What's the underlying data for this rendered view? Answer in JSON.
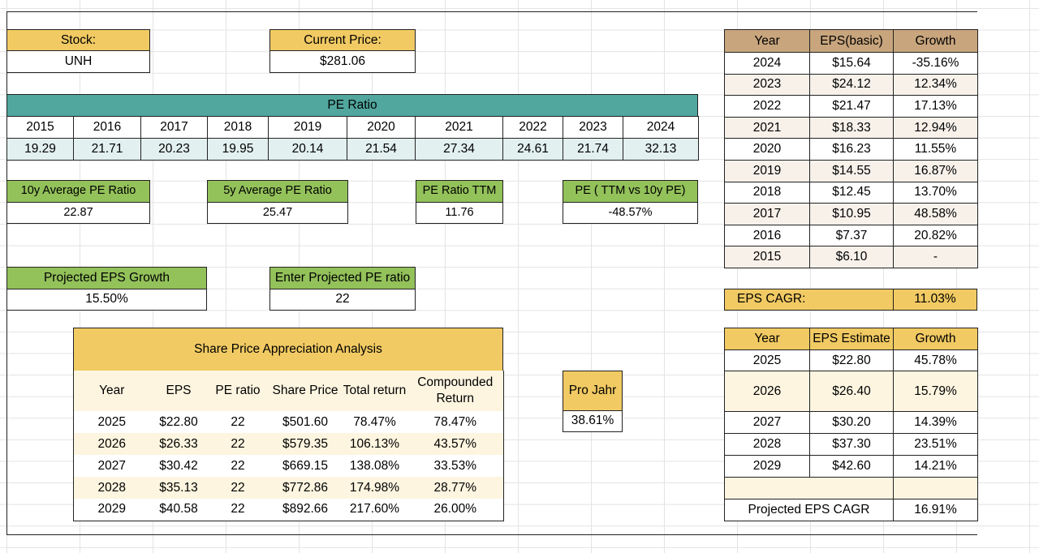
{
  "stock": {
    "label": "Stock:",
    "value": "UNH"
  },
  "current_price": {
    "label": "Current Price:",
    "value": "$281.06"
  },
  "pe_ratio": {
    "title": "PE Ratio",
    "years": [
      "2015",
      "2016",
      "2017",
      "2018",
      "2019",
      "2020",
      "2021",
      "2022",
      "2023",
      "2024"
    ],
    "values": [
      "19.29",
      "21.71",
      "20.23",
      "19.95",
      "20.14",
      "21.54",
      "27.34",
      "24.61",
      "21.74",
      "32.13"
    ]
  },
  "metrics": {
    "avg10": {
      "label": "10y Average PE Ratio",
      "value": "22.87"
    },
    "avg5": {
      "label": "5y Average PE Ratio",
      "value": "25.47"
    },
    "ttm": {
      "label": "PE Ratio TTM",
      "value": "11.76"
    },
    "ttm_vs_10y": {
      "label": "PE ( TTM vs 10y PE)",
      "value": "-48.57%"
    }
  },
  "projected_growth": {
    "label": "Projected EPS Growth",
    "value": "15.50%"
  },
  "projected_pe": {
    "label": "Enter Projected PE ratio",
    "value": "22"
  },
  "analysis": {
    "title": "Share Price Appreciation Analysis",
    "headers": [
      "Year",
      "EPS",
      "PE ratio",
      "Share Price",
      "Total return",
      "Compounded Return"
    ],
    "rows": [
      [
        "2025",
        "$22.80",
        "22",
        "$501.60",
        "78.47%",
        "78.47%"
      ],
      [
        "2026",
        "$26.33",
        "22",
        "$579.35",
        "106.13%",
        "43.57%"
      ],
      [
        "2027",
        "$30.42",
        "22",
        "$669.15",
        "138.08%",
        "33.53%"
      ],
      [
        "2028",
        "$35.13",
        "22",
        "$772.86",
        "174.98%",
        "28.77%"
      ],
      [
        "2029",
        "$40.58",
        "22",
        "$892.66",
        "217.60%",
        "26.00%"
      ]
    ]
  },
  "pro_jahr": {
    "label": "Pro Jahr",
    "value": "38.61%"
  },
  "eps_history": {
    "headers": [
      "Year",
      "EPS(basic)",
      "Growth"
    ],
    "rows": [
      [
        "2024",
        "$15.64",
        "-35.16%"
      ],
      [
        "2023",
        "$24.12",
        "12.34%"
      ],
      [
        "2022",
        "$21.47",
        "17.13%"
      ],
      [
        "2021",
        "$18.33",
        "12.94%"
      ],
      [
        "2020",
        "$16.23",
        "11.55%"
      ],
      [
        "2019",
        "$14.55",
        "16.87%"
      ],
      [
        "2018",
        "$12.45",
        "13.70%"
      ],
      [
        "2017",
        "$10.95",
        "48.58%"
      ],
      [
        "2016",
        "$7.37",
        "20.82%"
      ],
      [
        "2015",
        "$6.10",
        "-"
      ]
    ]
  },
  "eps_cagr": {
    "label": "EPS CAGR:",
    "value": "11.03%"
  },
  "eps_estimate": {
    "headers": [
      "Year",
      "EPS Estimate",
      "Growth"
    ],
    "rows": [
      [
        "2025",
        "$22.80",
        "45.78%"
      ],
      [
        "2026",
        "$26.40",
        "15.79%"
      ],
      [
        "2027",
        "$30.20",
        "14.39%"
      ],
      [
        "2028",
        "$37.30",
        "23.51%"
      ],
      [
        "2029",
        "$42.60",
        "14.21%"
      ]
    ]
  },
  "projected_eps_cagr": {
    "label": "Projected EPS CAGR",
    "value": "16.91%"
  }
}
